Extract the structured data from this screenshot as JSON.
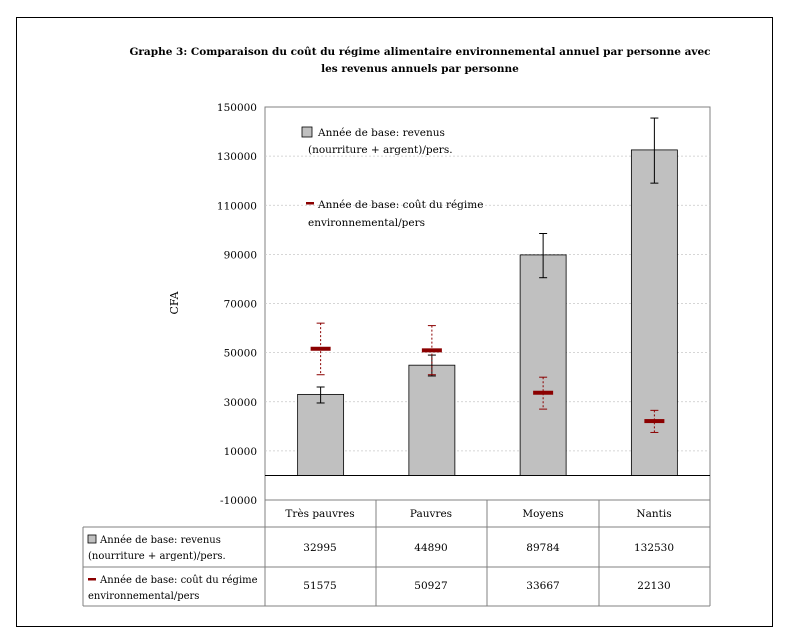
{
  "title_line1": "Graphe 3: Comparaison du coût du régime alimentaire environnemental annuel par personne avec",
  "title_line2": "les revenus annuels par personne",
  "chart_data": {
    "type": "bar",
    "title": "Graphe 3: Comparaison du coût du régime alimentaire environnemental annuel par personne avec les revenus annuels par personne",
    "ylabel": "CFA",
    "xlabel": "",
    "ylim": [
      -10000,
      150000
    ],
    "y_ticks": [
      -10000,
      10000,
      30000,
      50000,
      70000,
      90000,
      110000,
      130000,
      150000
    ],
    "y_tick_labels": [
      "-10000",
      "10000",
      "30000",
      "50000",
      "70000",
      "90000",
      "110000",
      "130000",
      "150000"
    ],
    "grid": true,
    "legend_position": "top-left (inside plot)",
    "categories": [
      "Très pauvres",
      "Pauvres",
      "Moyens",
      "Nantis"
    ],
    "series": [
      {
        "name": "Année de base: revenus (nourriture + argent)/pers.",
        "name_line1": "Année de base: revenus",
        "name_line2": "(nourriture + argent)/pers.",
        "kind": "bar",
        "color": "#c0c0c0",
        "values": [
          32995,
          44890,
          89784,
          132530
        ],
        "error_low": [
          29500,
          40500,
          80500,
          119000
        ],
        "error_high": [
          36000,
          49000,
          98500,
          145500
        ],
        "table_values": [
          "32995",
          "44890",
          "89784",
          "132530"
        ]
      },
      {
        "name": "Année de base: coût du régime environnemental/pers",
        "name_line1": "Année de base: coût du régime",
        "name_line2": "environnemental/pers",
        "kind": "marker",
        "color": "#8b0000",
        "values": [
          51575,
          50927,
          33667,
          22130
        ],
        "error_low": [
          41000,
          41000,
          27000,
          17500
        ],
        "error_high": [
          62000,
          61000,
          40000,
          26500
        ],
        "table_values": [
          "51575",
          "50927",
          "33667",
          "22130"
        ]
      }
    ]
  }
}
